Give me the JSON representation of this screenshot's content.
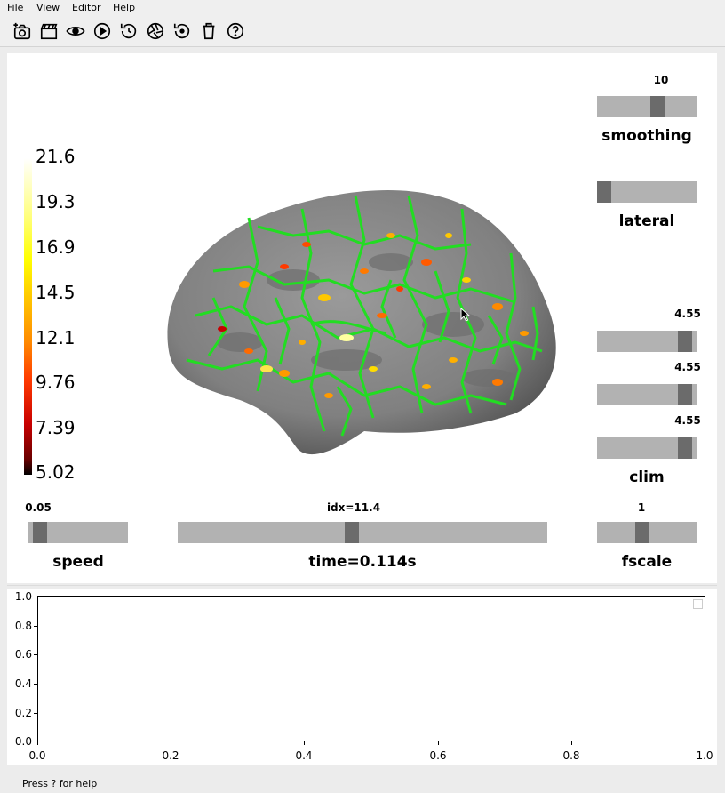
{
  "menu": {
    "items": [
      "File",
      "View",
      "Editor",
      "Help"
    ]
  },
  "toolbar": {
    "icons": [
      "screenshot-icon",
      "movie-icon",
      "visibility-icon",
      "play-icon",
      "restore-icon",
      "camera-aperture-icon",
      "reset-icon",
      "clear-icon",
      "help-icon"
    ]
  },
  "colorbar": {
    "ticks": [
      "21.6",
      "19.3",
      "16.9",
      "14.5",
      "12.1",
      "9.76",
      "7.39",
      "5.02"
    ],
    "colors": [
      "#000000",
      "#c80000",
      "#ff8a00",
      "#ffff00",
      "#ffffff"
    ]
  },
  "sliders": {
    "smoothing": {
      "label": "smoothing",
      "value": "10",
      "fraction": 0.62
    },
    "lateral": {
      "label": "lateral",
      "fraction": 0.0
    },
    "clim1": {
      "value": "4.55",
      "fraction": 0.95
    },
    "clim2": {
      "value": "4.55",
      "fraction": 0.95
    },
    "clim3": {
      "value": "4.55",
      "fraction": 0.95
    },
    "clim_label": "clim",
    "speed": {
      "label": "speed",
      "value": "0.05",
      "fraction": 0.05
    },
    "time": {
      "label": "time=0.114s",
      "value": "idx=11.4",
      "fraction": 0.47
    },
    "fscale": {
      "label": "fscale",
      "value": "1",
      "fraction": 0.45
    }
  },
  "plot": {
    "yticks": [
      "1.0",
      "0.8",
      "0.6",
      "0.4",
      "0.2",
      "0.0"
    ],
    "xticks": [
      "0.0",
      "0.2",
      "0.4",
      "0.6",
      "0.8",
      "1.0"
    ]
  },
  "status": {
    "text": "Press ? for help"
  }
}
